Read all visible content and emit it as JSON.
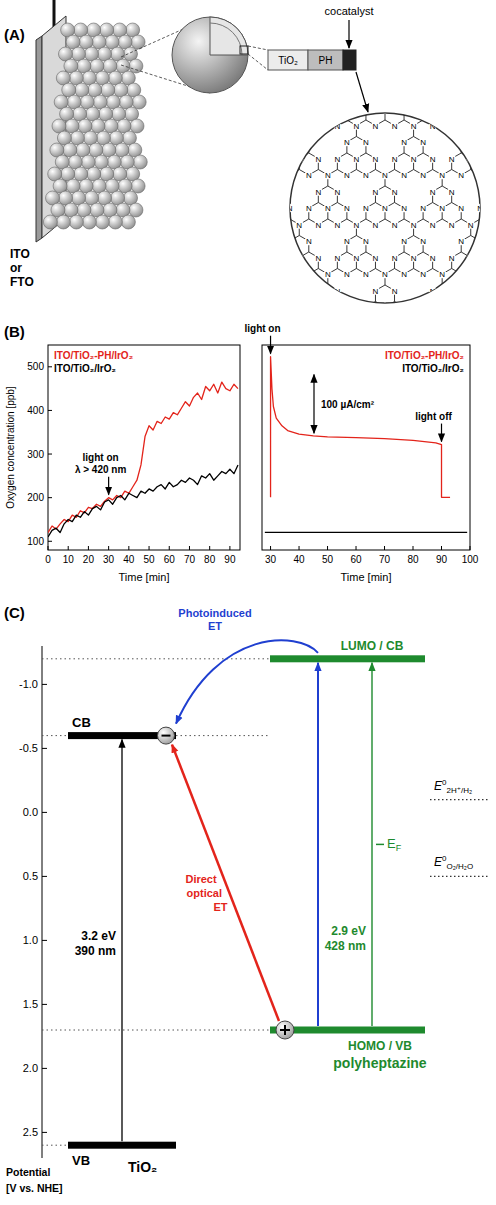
{
  "panel_a": {
    "letter": "(A)",
    "electrode_label": [
      "ITO",
      "or",
      "FTO"
    ],
    "layers": [
      "TiO₂",
      "PH"
    ],
    "cocatalyst_label": "cocatalyst",
    "atom_label": "N"
  },
  "panel_b": {
    "letter": "(B)"
  },
  "chart_data": [
    {
      "type": "line",
      "x_label": "Time [min]",
      "y_label": "Oxygen concentration [ppb]",
      "x": [
        0,
        2,
        4,
        6,
        8,
        10,
        12,
        14,
        16,
        18,
        20,
        22,
        24,
        26,
        28,
        30,
        32,
        34,
        36,
        38,
        40,
        42,
        44,
        46,
        48,
        50,
        52,
        54,
        56,
        58,
        60,
        62,
        64,
        66,
        68,
        70,
        72,
        74,
        76,
        78,
        80,
        82,
        84,
        86,
        88,
        90,
        92,
        94
      ],
      "xlim": [
        0,
        95
      ],
      "ylim": [
        80,
        550
      ],
      "xticks": [
        0,
        10,
        20,
        30,
        40,
        50,
        60,
        70,
        80,
        90
      ],
      "yticks": [
        100,
        200,
        300,
        400,
        500
      ],
      "grid": false,
      "legend": "upper left",
      "series": [
        {
          "name": "ITO/TiO₂-PH/IrO₂",
          "color": "#e3241b",
          "values": [
            120,
            135,
            128,
            140,
            150,
            145,
            160,
            155,
            170,
            165,
            178,
            175,
            185,
            180,
            192,
            200,
            195,
            205,
            200,
            215,
            210,
            225,
            240,
            275,
            340,
            365,
            355,
            375,
            370,
            385,
            380,
            395,
            390,
            405,
            420,
            410,
            430,
            440,
            425,
            455,
            445,
            460,
            440,
            465,
            450,
            445,
            460,
            450
          ]
        },
        {
          "name": "ITO/TiO₂/IrO₂",
          "color": "#000000",
          "values": [
            110,
            125,
            130,
            120,
            140,
            150,
            145,
            160,
            155,
            168,
            160,
            175,
            180,
            172,
            190,
            195,
            185,
            200,
            205,
            195,
            210,
            205,
            200,
            215,
            210,
            220,
            215,
            225,
            230,
            220,
            235,
            225,
            230,
            240,
            235,
            245,
            240,
            230,
            250,
            245,
            255,
            240,
            250,
            260,
            255,
            265,
            255,
            275
          ]
        }
      ],
      "annotations": [
        {
          "text": [
            "light on",
            "λ > 420 nm"
          ],
          "x": 30
        }
      ]
    },
    {
      "type": "line",
      "x_label": "Time [min]",
      "xlim": [
        27,
        100
      ],
      "ylim": [
        -30,
        320
      ],
      "xticks": [
        30,
        40,
        50,
        60,
        70,
        80,
        90,
        100
      ],
      "tick_labels": "x",
      "grid": false,
      "legend": "upper right",
      "series": [
        {
          "name": "ITO/TiO₂-PH/IrO₂",
          "color": "#e3241b",
          "x": [
            30,
            30,
            30.5,
            31,
            32,
            34,
            36,
            40,
            45,
            50,
            60,
            70,
            80,
            88,
            90,
            90,
            93
          ],
          "values": [
            60,
            300,
            245,
            215,
            195,
            182,
            174,
            168,
            165,
            163,
            162,
            160,
            157,
            153,
            150,
            60,
            60
          ]
        },
        {
          "name": "ITO/TiO₂/IrO₂",
          "color": "#000000",
          "x": [
            28,
            99
          ],
          "values": [
            0,
            0
          ]
        }
      ],
      "annotations": [
        {
          "text": [
            "light on"
          ],
          "x": 30
        },
        {
          "text": [
            "light off"
          ],
          "x": 90
        }
      ],
      "scale_bar": {
        "value": 100,
        "label": "100 µA/cm²"
      }
    }
  ],
  "panel_c": {
    "letter": "(C)",
    "y_label": [
      "Potential",
      "[V vs. NHE]"
    ],
    "ylim": [
      -1.3,
      2.7
    ],
    "yticks": [
      {
        "value": -1,
        "label": "-1.0"
      },
      -0.5,
      {
        "value": 0,
        "label": "0.0"
      },
      0.5,
      {
        "value": 1,
        "label": "1.0"
      },
      1.5,
      {
        "value": 2,
        "label": "2.0"
      },
      2.5
    ],
    "tio2": {
      "name": "TiO₂",
      "color": "#000000",
      "cb": -0.6,
      "vb": 2.6,
      "cb_label": "CB",
      "vb_label": "VB",
      "gap_labels": [
        "3.2 eV",
        "390 nm"
      ]
    },
    "polyheptazine": {
      "name": "polyheptazine",
      "color": "#1e8a2e",
      "lumo": -1.2,
      "homo": 1.7,
      "lumo_label": "LUMO / CB",
      "homo_label": "HOMO / VB",
      "gap_labels": [
        "2.9 eV",
        "428 nm"
      ],
      "fermi_level": 0.25,
      "fermi_label": {
        "symbol": "E",
        "subscript": "F"
      }
    },
    "transfers": [
      {
        "label": [
          "Photoinduced",
          "ET"
        ],
        "color": "#1f3fd0"
      },
      {
        "label": [
          "Direct",
          "optical",
          "ET"
        ],
        "color": "#e3241b"
      }
    ],
    "redox": [
      {
        "value": -0.1,
        "symbol": "E",
        "superscript": "0",
        "subscript": "2H⁺/H₂"
      },
      {
        "value": 0.5,
        "symbol": "E",
        "superscript": "0",
        "subscript": "O₂/H₂O"
      }
    ]
  }
}
